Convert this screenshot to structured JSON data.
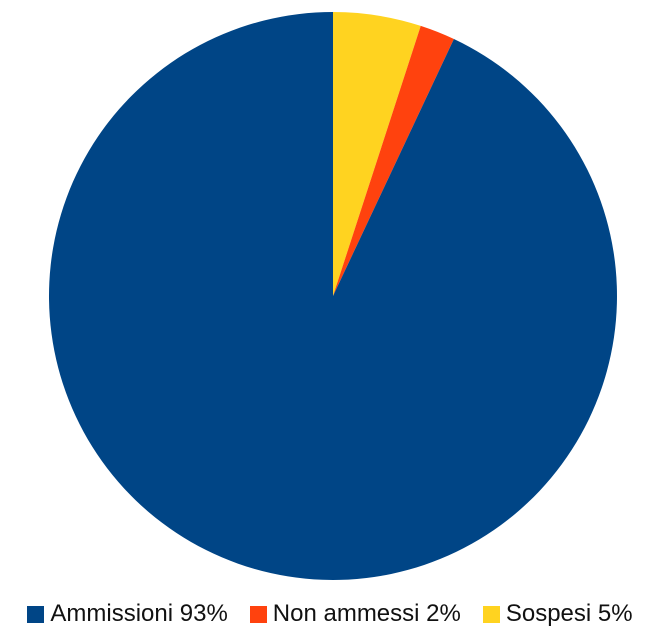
{
  "chart_data": {
    "type": "pie",
    "title": "",
    "start_angle_deg": 0,
    "direction": "clockwise",
    "slices": [
      {
        "label": "Sospesi",
        "legend_label": "Sospesi 5%",
        "value": 5,
        "color": "#ffd320"
      },
      {
        "label": "Non ammessi",
        "legend_label": "Non ammessi 2%",
        "value": 2,
        "color": "#ff420e"
      },
      {
        "label": "Ammissioni",
        "legend_label": "Ammissioni 93%",
        "value": 93,
        "color": "#004586"
      }
    ],
    "legend": {
      "placement": "bottom",
      "order": [
        "Ammissioni",
        "Non ammessi",
        "Sospesi"
      ]
    }
  }
}
